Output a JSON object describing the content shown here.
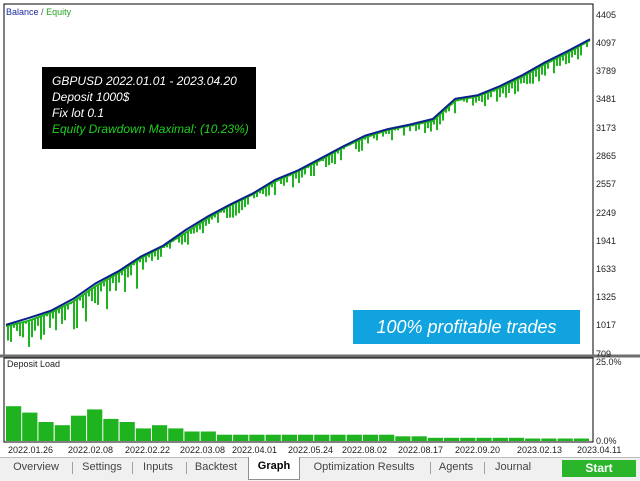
{
  "legend": {
    "balance": "Balance",
    "separator": "/",
    "equity": "Equity"
  },
  "info_box": {
    "line1": "GBPUSD 2022.01.01 - 2023.04.20",
    "line2": "Deposit 1000$",
    "line3": "Fix lot 0.1",
    "line4": "Equity Drawdown Maximal: (10.23%)"
  },
  "badge": "100% profitable trades",
  "y_ticks": [
    "4405",
    "4097",
    "3789",
    "3481",
    "3173",
    "2865",
    "2557",
    "2249",
    "1941",
    "1633",
    "1325",
    "1017",
    "709"
  ],
  "deposit_load": {
    "label": "Deposit Load",
    "top_tick": "25.0%",
    "bottom_tick": "0.0%"
  },
  "x_ticks": [
    "2022.01.26",
    "2022.02.08",
    "2022.02.22",
    "2022.03.08",
    "2022.04.01",
    "2022.05.24",
    "2022.08.02",
    "2022.08.17",
    "2022.09.20",
    "2023.02.13",
    "2023.04.11"
  ],
  "tabs": [
    {
      "label": "Overview"
    },
    {
      "label": "Settings"
    },
    {
      "label": "Inputs"
    },
    {
      "label": "Backtest"
    },
    {
      "label": "Graph"
    },
    {
      "label": "Optimization Results"
    },
    {
      "label": "Agents"
    },
    {
      "label": "Journal"
    }
  ],
  "active_tab": "Graph",
  "start_label": "Start",
  "colors": {
    "balance": "#0d1f8c",
    "equity": "#1fb31f",
    "badge": "#11a3e0",
    "start": "#2bb52b"
  },
  "chart_data": [
    {
      "type": "line",
      "title": "",
      "legend": [
        "Balance",
        "Equity"
      ],
      "x_tick_labels": [
        "2022.01.26",
        "2022.02.08",
        "2022.02.22",
        "2022.03.08",
        "2022.04.01",
        "2022.05.24",
        "2022.08.02",
        "2022.08.17",
        "2022.09.20",
        "2023.02.13",
        "2023.04.11"
      ],
      "ylim": [
        709,
        4405
      ],
      "series": [
        {
          "name": "Balance",
          "values": [
            1017,
            1090,
            1170,
            1300,
            1470,
            1600,
            1760,
            1880,
            2050,
            2200,
            2330,
            2450,
            2600,
            2700,
            2830,
            2960,
            3080,
            3150,
            3200,
            3260,
            3480,
            3520,
            3620,
            3740,
            3880,
            4000,
            4130
          ]
        },
        {
          "name": "Equity",
          "values": [
            1000,
            1060,
            1150,
            1270,
            1440,
            1580,
            1740,
            1870,
            2020,
            2180,
            2320,
            2440,
            2580,
            2690,
            2810,
            2950,
            3060,
            3140,
            3190,
            3240,
            3460,
            3510,
            3600,
            3720,
            3860,
            3980,
            4120
          ]
        }
      ]
    },
    {
      "type": "bar",
      "title": "Deposit Load",
      "ylim": [
        0,
        25
      ],
      "values": [
        11,
        9,
        6,
        5,
        8,
        10,
        7,
        6,
        4,
        5,
        4,
        3,
        3,
        2,
        2,
        2,
        2,
        2,
        2,
        2,
        2,
        2,
        2,
        2,
        1.5,
        1.5,
        1,
        1,
        1,
        1,
        1,
        1,
        0.8,
        0.8,
        0.8,
        0.8
      ]
    }
  ]
}
